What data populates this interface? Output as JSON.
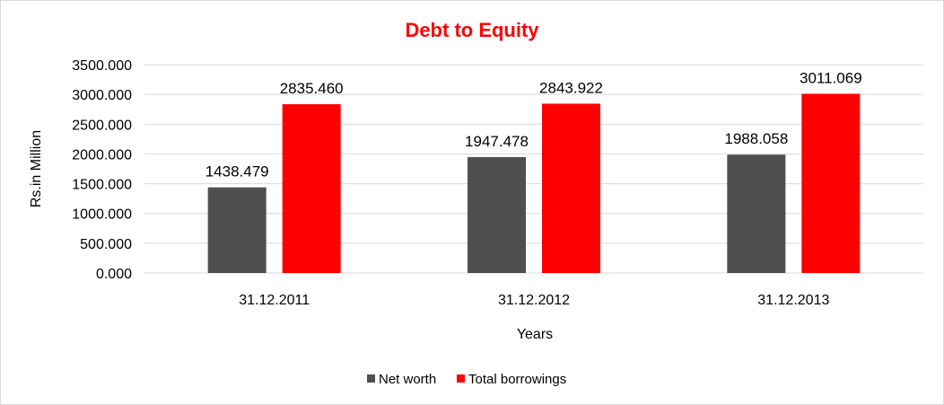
{
  "chart_data": {
    "type": "bar",
    "title": "Debt to Equity",
    "title_color": "#ff0000",
    "xlabel": "Years",
    "ylabel": "Rs.in Million",
    "categories": [
      "31.12.2011",
      "31.12.2012",
      "31.12.2013"
    ],
    "series": [
      {
        "name": "Net worth",
        "color": "#4f4f4f",
        "values": [
          1438.479,
          1947.478,
          1988.058
        ],
        "labels": [
          "1438.479",
          "1947.478",
          "1988.058"
        ]
      },
      {
        "name": "Total borrowings",
        "color": "#ff0000",
        "values": [
          2835.46,
          2843.922,
          3011.069
        ],
        "labels": [
          "2835.460",
          "2843.922",
          "3011.069"
        ]
      }
    ],
    "ylim": [
      0,
      3500
    ],
    "yticks": [
      0,
      500,
      1000,
      1500,
      2000,
      2500,
      3000,
      3500
    ],
    "ytick_labels": [
      "0.000",
      "500.000",
      "1000.000",
      "1500.000",
      "2000.000",
      "2500.000",
      "3000.000",
      "3500.000"
    ],
    "grid": true,
    "gridline_color": "#d9d9d9",
    "legend_position": "bottom"
  }
}
